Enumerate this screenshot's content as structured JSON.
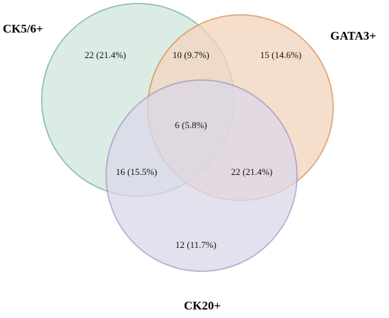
{
  "sets": [
    {
      "id": "ck56",
      "label": "CK5/6+",
      "fill": "#cfe6dd",
      "stroke": "#6aae95"
    },
    {
      "id": "gata3",
      "label": "GATA3+",
      "fill": "#f3d4bd",
      "stroke": "#d9874a"
    },
    {
      "id": "ck20",
      "label": "CK20+",
      "fill": "#dcd8ea",
      "stroke": "#9f93c4"
    }
  ],
  "regions": {
    "ck56_only": "22 (21.4%)",
    "ck56_gata3": "10 (9.7%)",
    "gata3_only": "15 (14.6%)",
    "all_three": "6 (5.8%)",
    "ck56_ck20": "16 (15.5%)",
    "gata3_ck20": "22 (21.4%)",
    "ck20_only": "12 (11.7%)"
  }
}
